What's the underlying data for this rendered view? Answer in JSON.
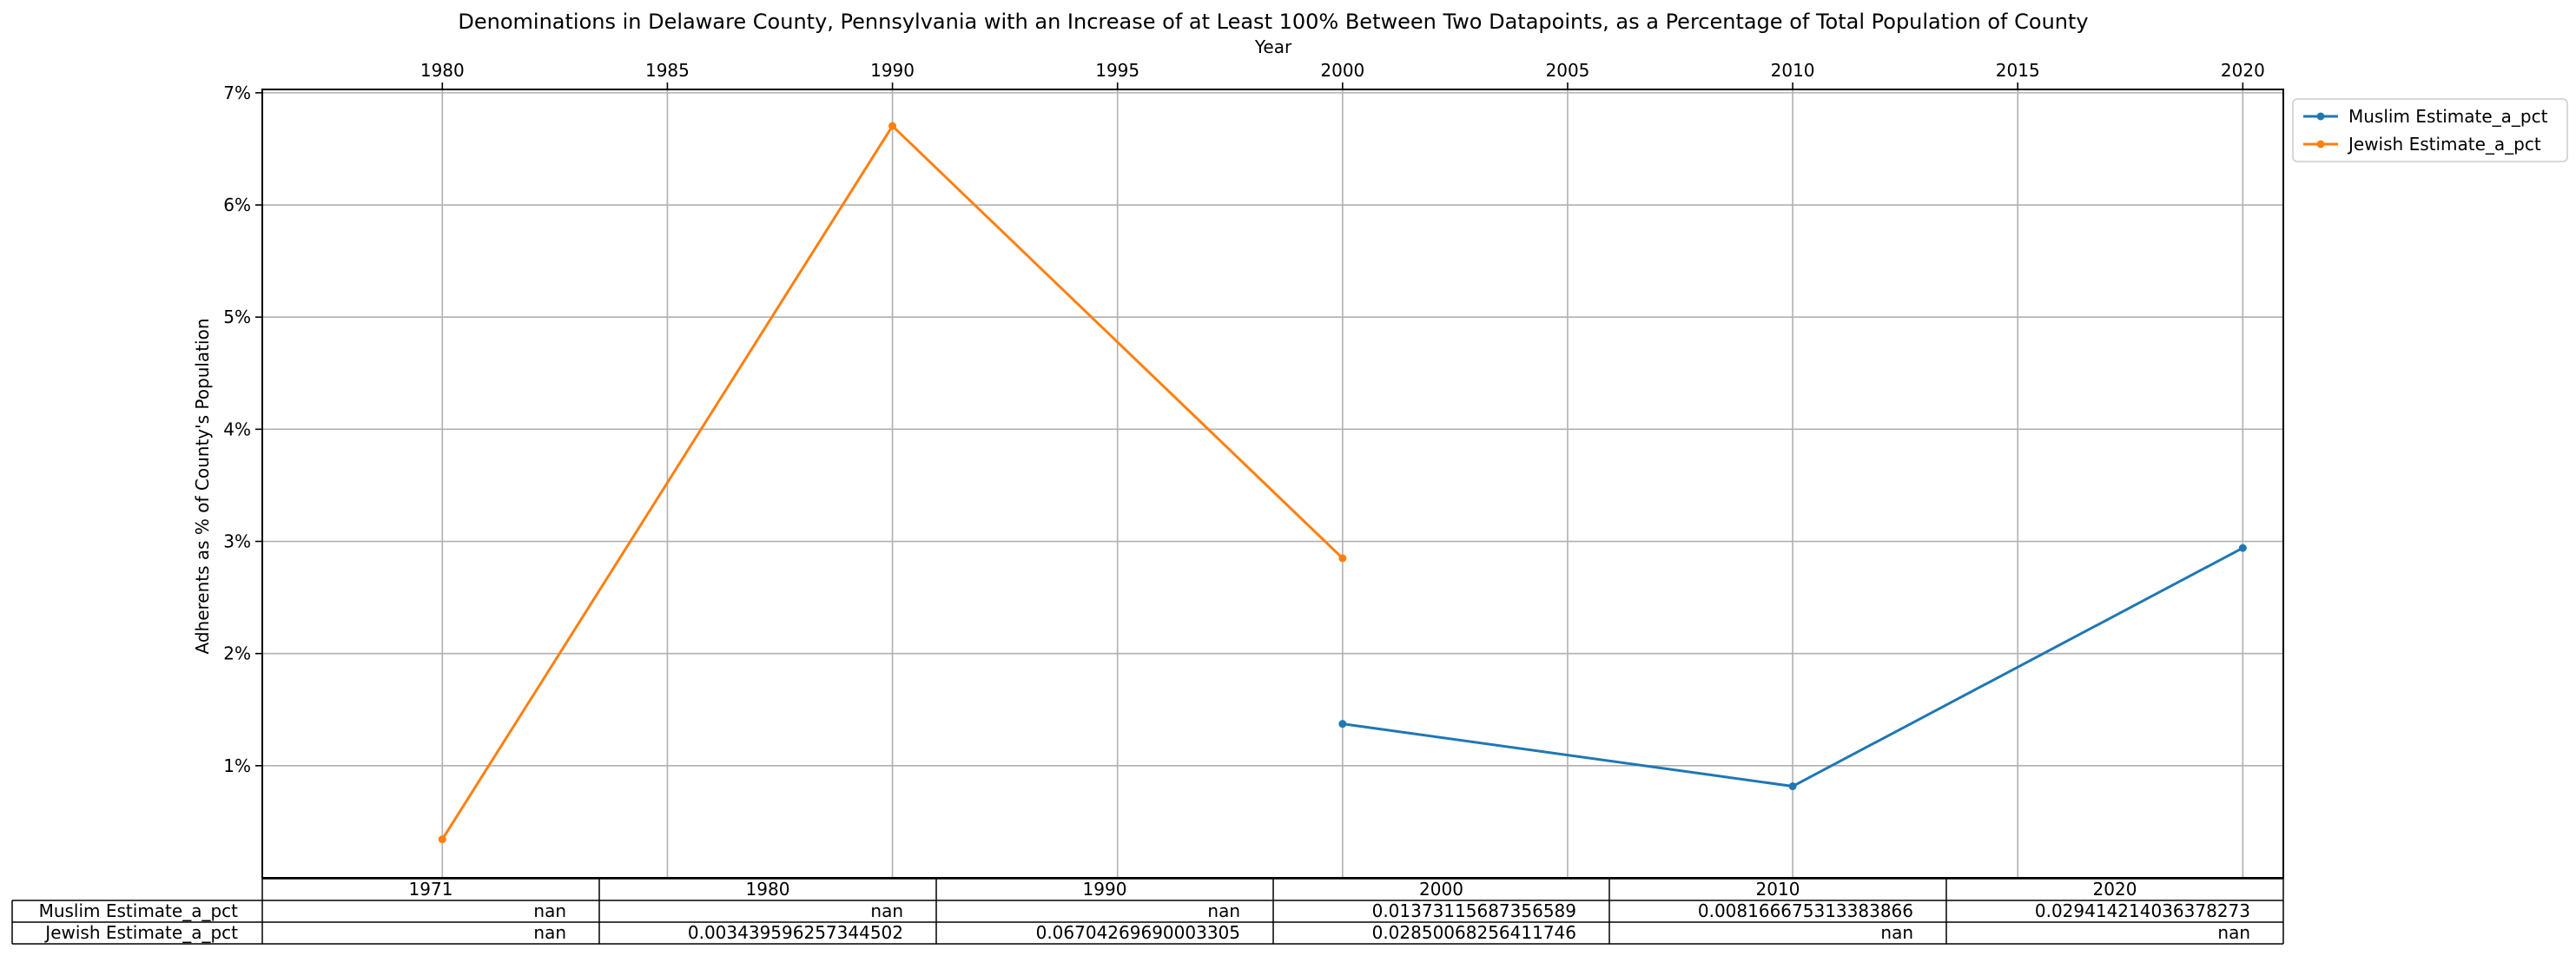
{
  "chart_data": {
    "type": "line",
    "title": "Denominations in Delaware County, Pennsylvania with an Increase of at Least 100% Between Two Datapoints, as a Percentage of Total Population of County",
    "xlabel": "Year",
    "ylabel": "Adherents as % of County's Population",
    "xlim": [
      1976,
      2020.9
    ],
    "ylim": [
      0,
      0.0703
    ],
    "x_ticks": [
      1980,
      1985,
      1990,
      1995,
      2000,
      2005,
      2010,
      2015,
      2020
    ],
    "y_ticks": [
      {
        "value": 0.01,
        "label": "1%"
      },
      {
        "value": 0.02,
        "label": "2%"
      },
      {
        "value": 0.03,
        "label": "3%"
      },
      {
        "value": 0.04,
        "label": "4%"
      },
      {
        "value": 0.05,
        "label": "5%"
      },
      {
        "value": 0.06,
        "label": "6%"
      },
      {
        "value": 0.07,
        "label": "7%"
      }
    ],
    "grid": true,
    "x_axis_position": "top",
    "legend_position": "outside-top-right",
    "series": [
      {
        "name": "Muslim Estimate_a_pct",
        "color": "#1f77b4",
        "x": [
          2000,
          2010,
          2020
        ],
        "y": [
          0.01373115687356589,
          0.008166675313383866,
          0.029414214036378273
        ]
      },
      {
        "name": "Jewish Estimate_a_pct",
        "color": "#ff7f0e",
        "x": [
          1980,
          1990,
          2000
        ],
        "y": [
          0.003439596257344502,
          0.06704269690003305,
          0.02850068256411746
        ]
      }
    ],
    "table": {
      "columns": [
        "1971",
        "1980",
        "1990",
        "2000",
        "2010",
        "2020"
      ],
      "rows": [
        {
          "label": "Muslim Estimate_a_pct",
          "cells": [
            "nan",
            "nan",
            "nan",
            "0.01373115687356589",
            "0.008166675313383866",
            "0.029414214036378273"
          ]
        },
        {
          "label": "Jewish Estimate_a_pct",
          "cells": [
            "nan",
            "0.003439596257344502",
            "0.06704269690003305",
            "0.02850068256411746",
            "nan",
            "nan"
          ]
        }
      ]
    }
  }
}
